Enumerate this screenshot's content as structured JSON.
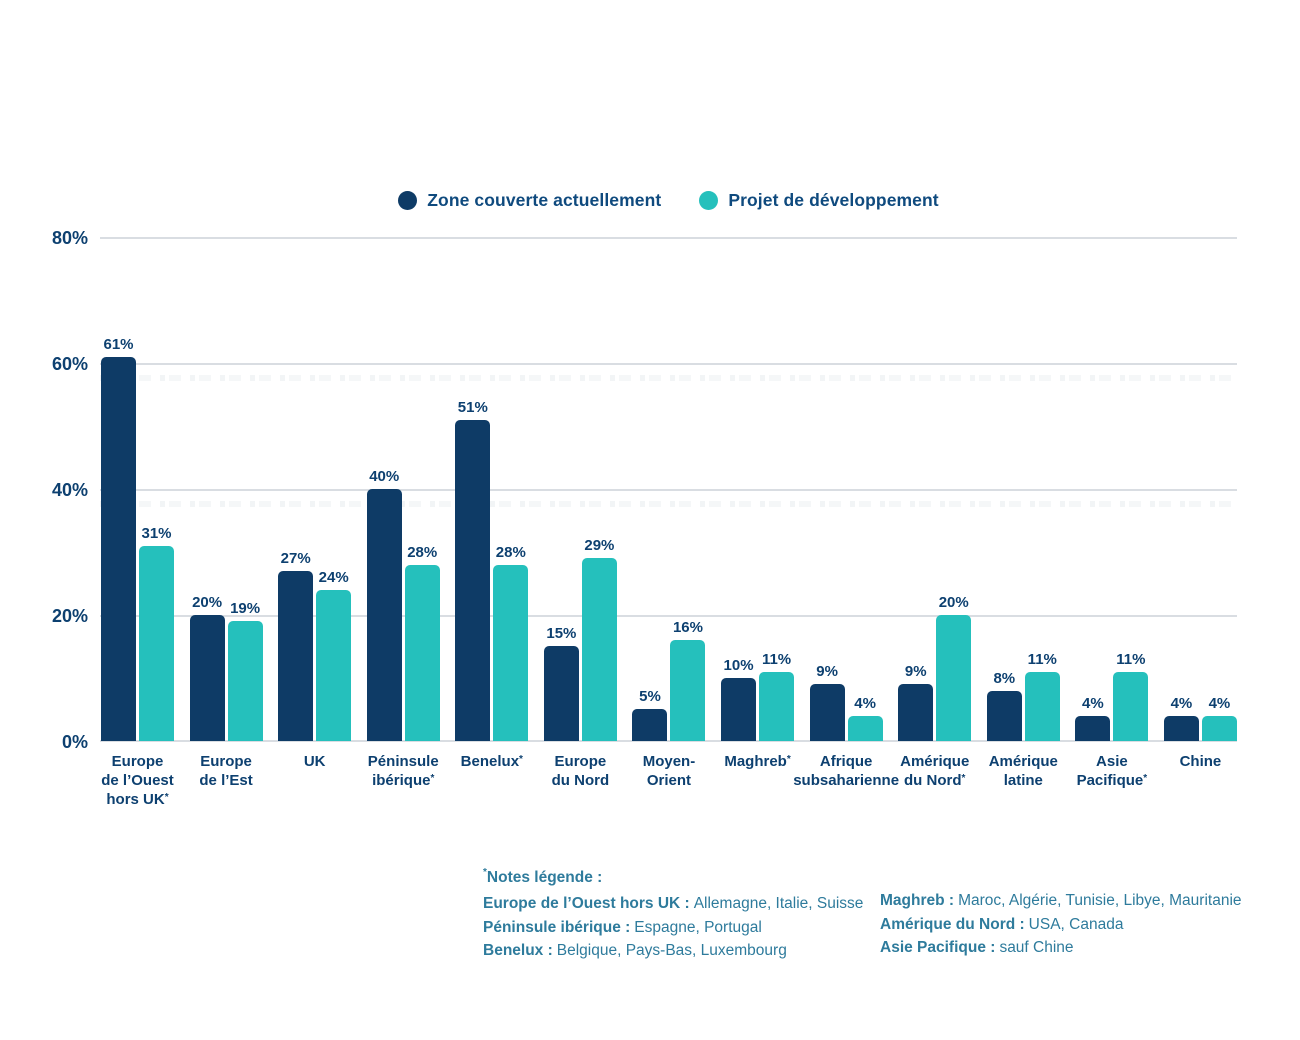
{
  "colors": {
    "series_navy": "#0e3b66",
    "series_teal": "#25c0bc",
    "text_navy": "#0d4070",
    "legend_text": "#0f4a7e",
    "notes_text": "#2e7b9c",
    "gridline": "#d9dde2",
    "background": "#ffffff"
  },
  "chart_data": {
    "type": "bar",
    "title": "",
    "legend_position": "top-center",
    "grid": true,
    "ylim": [
      0,
      80
    ],
    "value_suffix": "%",
    "ylabel_ticks": [
      "80%",
      "60%",
      "40%",
      "20%",
      "0%"
    ],
    "categories": [
      {
        "lines": [
          "Europe",
          "de l’Ouest",
          "hors UK*"
        ]
      },
      {
        "lines": [
          "Europe",
          "de l’Est"
        ]
      },
      {
        "lines": [
          "UK"
        ]
      },
      {
        "lines": [
          "Péninsule",
          "ibérique*"
        ]
      },
      {
        "lines": [
          "Benelux*"
        ]
      },
      {
        "lines": [
          "Europe",
          "du Nord"
        ]
      },
      {
        "lines": [
          "Moyen-",
          "Orient"
        ]
      },
      {
        "lines": [
          "Maghreb*"
        ]
      },
      {
        "lines": [
          "Afrique",
          "subsaharienne"
        ]
      },
      {
        "lines": [
          "Amérique",
          "du Nord*"
        ]
      },
      {
        "lines": [
          "Amérique",
          "latine"
        ]
      },
      {
        "lines": [
          "Asie",
          "Pacifique*"
        ]
      },
      {
        "lines": [
          "Chine"
        ]
      }
    ],
    "series": [
      {
        "name": "Zone couverte actuellement",
        "color": "#0e3b66",
        "values": [
          61,
          20,
          27,
          40,
          51,
          15,
          5,
          10,
          9,
          9,
          8,
          4,
          4
        ]
      },
      {
        "name": "Projet de développement",
        "color": "#25c0bc",
        "values": [
          31,
          19,
          24,
          28,
          28,
          29,
          16,
          11,
          4,
          20,
          11,
          11,
          4
        ]
      }
    ]
  },
  "notes": {
    "asterisk": "*",
    "title": "Notes légende :",
    "left": [
      {
        "term": "Europe de l’Ouest hors UK :",
        "definition": "Allemagne, Italie, Suisse"
      },
      {
        "term": "Péninsule ibérique :",
        "definition": "Espagne, Portugal"
      },
      {
        "term": "Benelux :",
        "definition": "Belgique, Pays-Bas, Luxembourg"
      }
    ],
    "right": [
      {
        "term": "Maghreb :",
        "definition": "Maroc, Algérie, Tunisie, Libye, Mauritanie"
      },
      {
        "term": "Amérique du Nord :",
        "definition": "USA, Canada"
      },
      {
        "term": "Asie Pacifique :",
        "definition": "sauf Chine"
      }
    ]
  }
}
